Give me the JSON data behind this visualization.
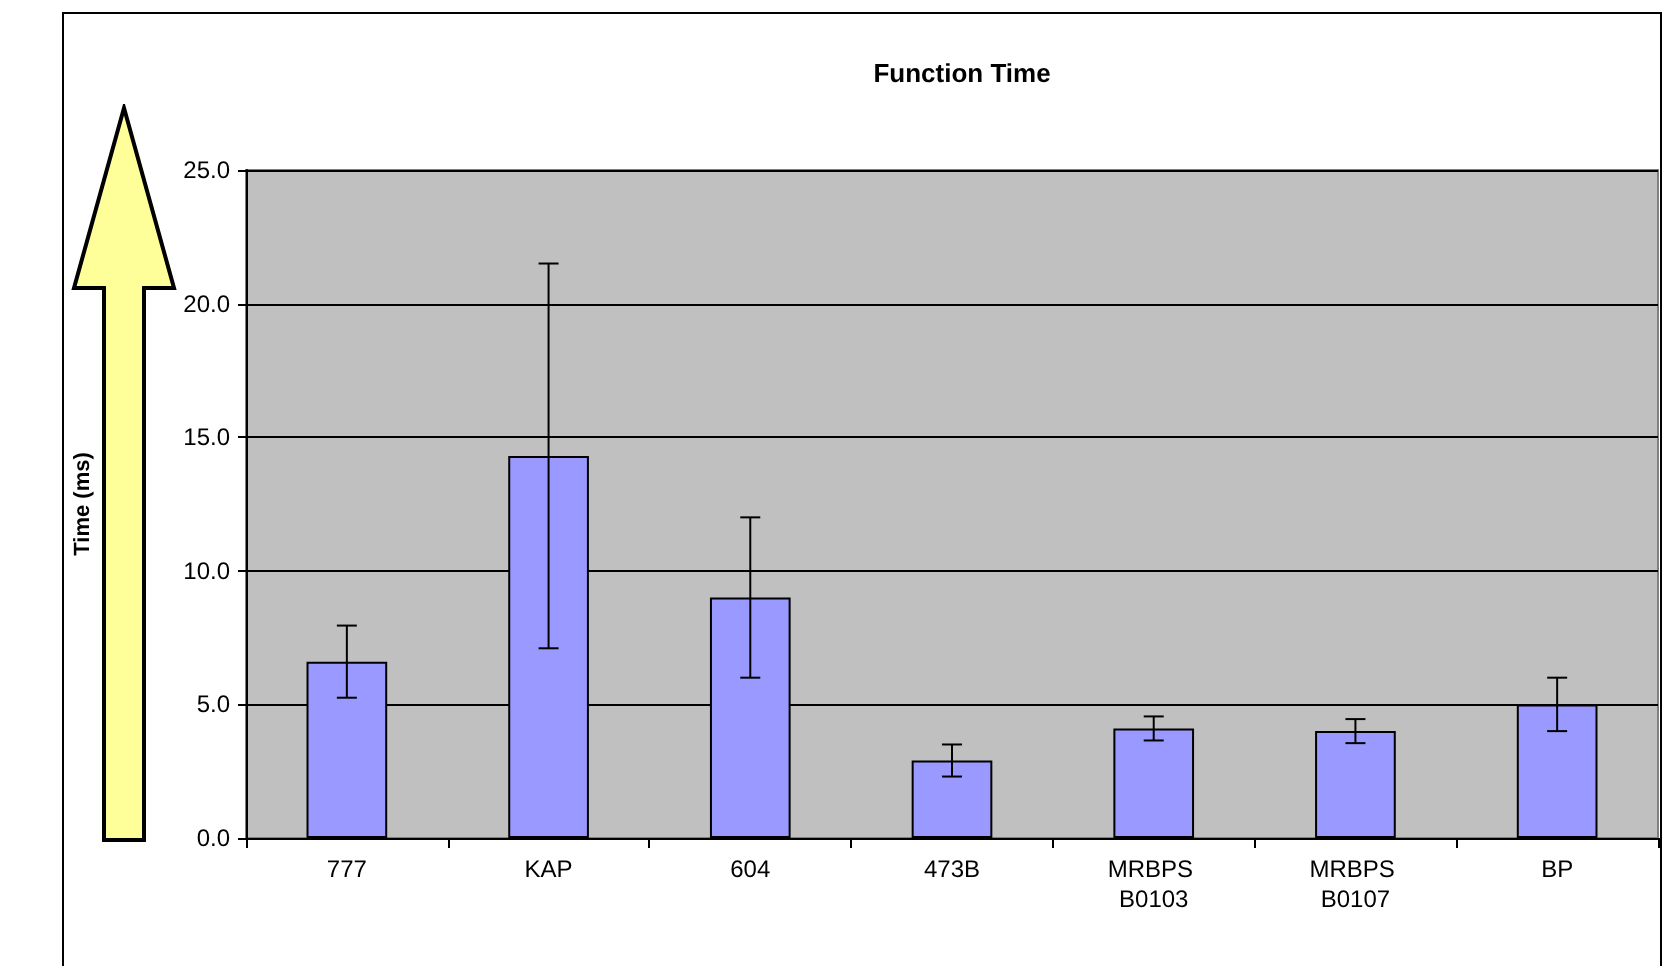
{
  "chart_data": {
    "type": "bar",
    "title": "Function Time",
    "ylabel": "Time (ms)",
    "categories": [
      "777",
      "KAP",
      "604",
      "473B",
      "MRBPS B0103",
      "MRBPS B0107",
      "BP"
    ],
    "values": [
      6.6,
      14.3,
      9.0,
      2.9,
      4.1,
      4.0,
      5.0
    ],
    "errors": [
      1.35,
      7.2,
      3.0,
      0.6,
      0.45,
      0.45,
      1.0
    ],
    "color": "#9999ff",
    "ylim": [
      0,
      25
    ],
    "yticks": [
      {
        "value": 0,
        "label": "0.0"
      },
      {
        "value": 5,
        "label": "5.0"
      },
      {
        "value": 10,
        "label": "10.0"
      },
      {
        "value": 15,
        "label": "15.0"
      },
      {
        "value": 20,
        "label": "20.0"
      },
      {
        "value": 25,
        "label": "25.0"
      }
    ],
    "grid": "y"
  }
}
